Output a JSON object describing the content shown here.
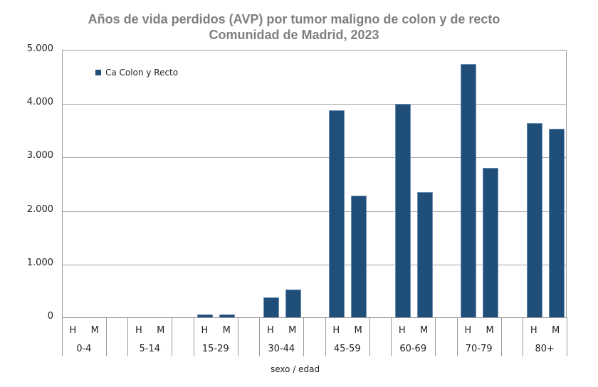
{
  "chart_data": {
    "type": "bar",
    "title": "Años de vida perdidos (AVP) por tumor maligno de colon y de recto",
    "subtitle": "Comunidad de Madrid, 2023",
    "xlabel": "sexo / edad",
    "ylabel": "",
    "ylim": [
      0,
      5000
    ],
    "yticks": [
      "0",
      "1.000",
      "2.000",
      "3.000",
      "4.000",
      "5.000"
    ],
    "grid": true,
    "legend_position": "top-left inside",
    "legend": [
      "Ca Colon y Recto"
    ],
    "bar_color": "#1f4e79",
    "groups": [
      "0-4",
      "5-14",
      "15-29",
      "30-44",
      "45-59",
      "60-69",
      "70-79",
      "80+"
    ],
    "sex_labels": [
      "H",
      "M"
    ],
    "categories": [
      "0-4 H",
      "0-4 M",
      "5-14 H",
      "5-14 M",
      "15-29 H",
      "15-29 M",
      "30-44 H",
      "30-44 M",
      "45-59 H",
      "45-59 M",
      "60-69 H",
      "60-69 M",
      "70-79 H",
      "70-79 M",
      "80+ H",
      "80+ M"
    ],
    "series": [
      {
        "name": "Ca Colon y Recto",
        "values": [
          0,
          0,
          0,
          0,
          60,
          70,
          385,
          530,
          3880,
          2290,
          4000,
          2350,
          4750,
          2810,
          3650,
          3540
        ]
      }
    ]
  }
}
